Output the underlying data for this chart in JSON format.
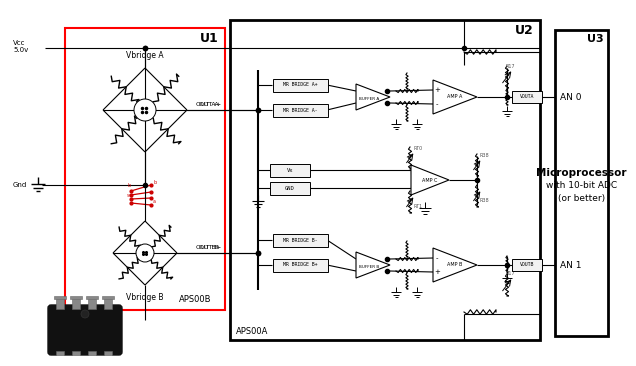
{
  "bg_color": "#ffffff",
  "lc": "#000000",
  "rc": "#cc0000",
  "gc": "#aaaaaa",
  "u1_label": "U1",
  "u2_label": "U2",
  "u3_label": "U3",
  "vcc_label": "Vcc\n5.0v",
  "gnd_label": "Gnd",
  "vbridge_a_label": "Vbridge A",
  "vbridge_b_label": "Vbridge B",
  "aps00b_label": "APS00B",
  "aps00a_label": "APS00A",
  "micro_label": "Microprocessor",
  "micro_sub1": "with 10-bit ADC",
  "micro_sub2": "(or better)",
  "an0_label": "AN 0",
  "an1_label": "AN 1",
  "buffer_a_label": "BUFFER A",
  "buffer_b_label": "BUFFER B",
  "amp_a_label": "AMP A",
  "amp_b_label": "AMP B",
  "amp_c_label": "AMP C",
  "out_am_label": "OUT A-",
  "out_ap_label": "OUT A+",
  "out_bm_label": "OUT B-",
  "out_bp_label": "OUT B+",
  "mr_bridge_ap": "MR BRIDGE A+",
  "mr_bridge_am": "MR BRIDGE A-",
  "mr_bridge_bm": "MR BRIDGE B-",
  "mr_bridge_bp": "MR BRIDGE B+",
  "vx_label": "Vx",
  "gnd2_label": "GND",
  "vouta_label": "VOUTA",
  "voutb_label": "VOUTB"
}
